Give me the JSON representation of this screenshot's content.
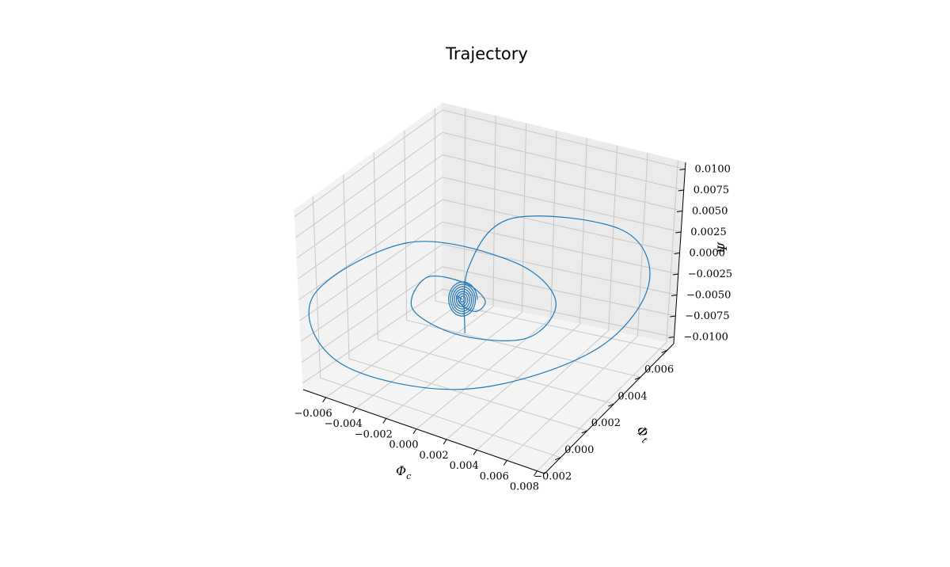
{
  "chart_data": {
    "type": "line",
    "projection": "3d",
    "title": "Trajectory",
    "xlabel": "Φ_c",
    "ylabel": "Φ_t",
    "zlabel": "Ψ",
    "xlim": [
      -0.0075,
      0.0085
    ],
    "ylim": [
      -0.0032,
      0.0065
    ],
    "zlim": [
      -0.0108,
      0.0108
    ],
    "xticks": [
      "−0.006",
      "−0.004",
      "−0.002",
      "0.000",
      "0.002",
      "0.004",
      "0.006",
      "0.008"
    ],
    "yticks": [
      "−0.002",
      "0.000",
      "0.002",
      "0.004",
      "0.006"
    ],
    "zticks": [
      "0.0100",
      "0.0075",
      "0.0050",
      "0.0025",
      "0.0000",
      "−0.0025",
      "−0.0050",
      "−0.0075",
      "−0.0100"
    ],
    "grid": true,
    "line_color": "#1f77b4",
    "series": [
      {
        "x": [
          0.0001,
          0.0,
          0.002,
          0.0069,
          0.0082,
          0.0058,
          0.0001,
          -0.0055,
          -0.0068,
          -0.0025,
          0.0022,
          0.0042,
          0.003,
          -0.0001,
          -0.0022,
          -0.0016,
          0.0001,
          0.001,
          0.0007,
          0.0001,
          -0.0003,
          0.0
        ],
        "y": [
          0.0001,
          0.0004,
          0.0012,
          0.0038,
          0.0045,
          0.0032,
          0.0001,
          -0.0026,
          -0.003,
          -0.0011,
          0.0011,
          0.0021,
          0.0015,
          0.0,
          -0.0011,
          -0.0008,
          0.0,
          0.0005,
          0.0003,
          0.0,
          -0.0001,
          0.0
        ],
        "z": [
          -0.004,
          0.0032,
          0.0088,
          0.006,
          -0.001,
          -0.0078,
          -0.0105,
          -0.0072,
          0.0005,
          0.0068,
          0.004,
          -0.001,
          -0.005,
          -0.0042,
          -0.0008,
          0.0028,
          0.002,
          -0.0002,
          -0.0014,
          -0.0008,
          0.0004,
          0.0
        ]
      }
    ]
  }
}
